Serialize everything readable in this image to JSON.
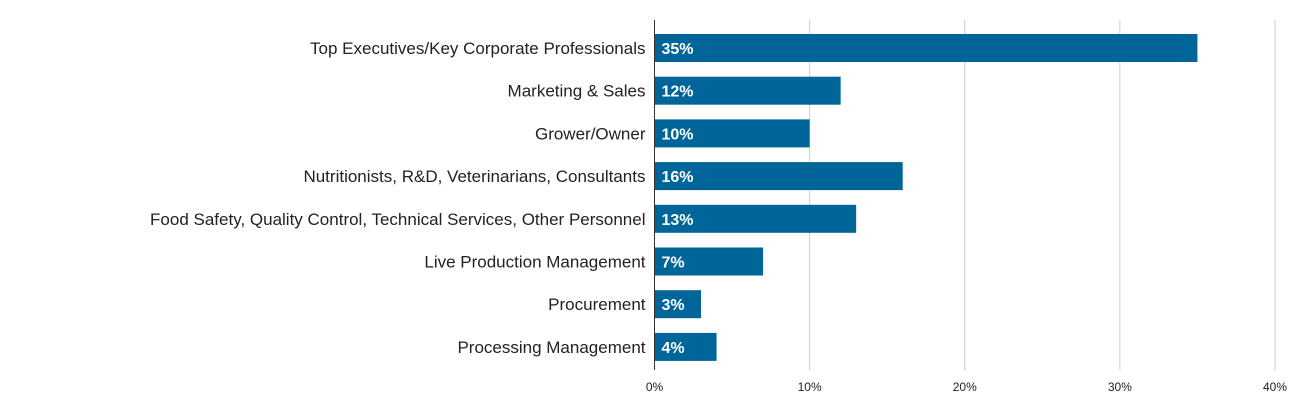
{
  "chart_data": {
    "type": "bar",
    "orientation": "horizontal",
    "title": "",
    "xlabel": "",
    "ylabel": "",
    "categories": [
      "Top Executives/Key Corporate Professionals",
      "Marketing & Sales",
      "Grower/Owner",
      "Nutritionists, R&D, Veterinarians, Consultants",
      "Food Safety, Quality Control, Technical Services, Other Personnel",
      "Live Production Management",
      "Procurement",
      "Processing Management"
    ],
    "values": [
      35,
      12,
      10,
      16,
      13,
      7,
      3,
      4
    ],
    "data_labels": [
      "35%",
      "12%",
      "10%",
      "16%",
      "13%",
      "7%",
      "3%",
      "4%"
    ],
    "xlim": [
      0,
      40
    ],
    "ticks": [
      0,
      10,
      20,
      30,
      40
    ],
    "tick_labels": [
      "0%",
      "10%",
      "20%",
      "30%",
      "40%"
    ],
    "grid": true,
    "legend": "none",
    "colors": {
      "bar": "#00669a",
      "grid": "#cccccc",
      "axis": "#333333",
      "bar_label": "#ffffff",
      "text": "#222222"
    }
  }
}
